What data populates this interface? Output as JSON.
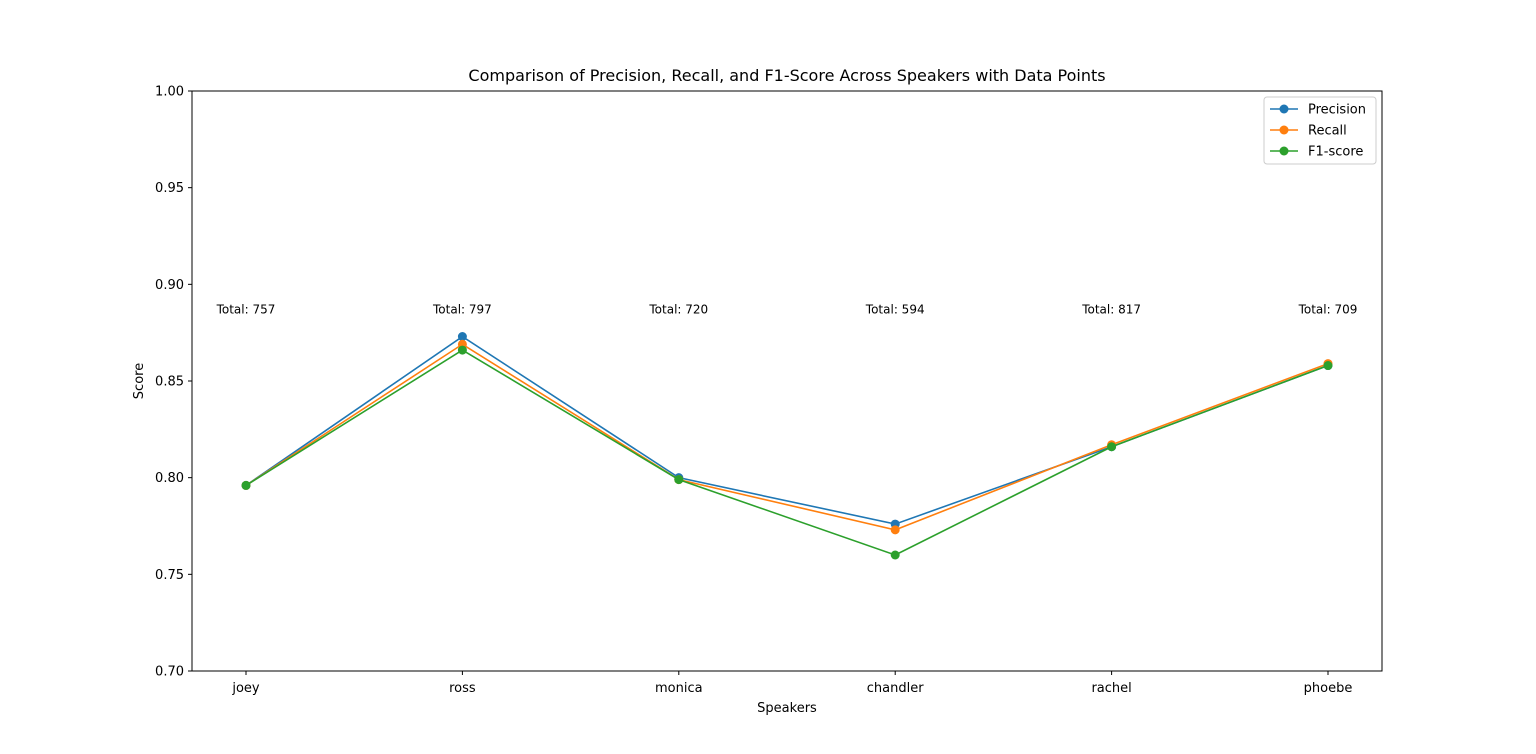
{
  "chart_data": {
    "type": "line",
    "title": "Comparison of Precision, Recall, and F1-Score Across Speakers with Data Points",
    "xlabel": "Speakers",
    "ylabel": "Score",
    "categories": [
      "joey",
      "ross",
      "monica",
      "chandler",
      "rachel",
      "phoebe"
    ],
    "ylim": [
      0.7,
      1.0
    ],
    "yticks": [
      "0.70",
      "0.75",
      "0.80",
      "0.85",
      "0.90",
      "0.95",
      "1.00"
    ],
    "series": [
      {
        "name": "Precision",
        "color": "#1f77b4",
        "values": [
          0.796,
          0.873,
          0.8,
          0.776,
          0.816,
          0.858
        ]
      },
      {
        "name": "Recall",
        "color": "#ff7f0e",
        "values": [
          0.796,
          0.869,
          0.799,
          0.773,
          0.817,
          0.859
        ]
      },
      {
        "name": "F1-score",
        "color": "#2ca02c",
        "values": [
          0.796,
          0.866,
          0.799,
          0.76,
          0.816,
          0.858
        ]
      }
    ],
    "annotations": {
      "y": 0.887,
      "labels": [
        "Total: 757",
        "Total: 797",
        "Total: 720",
        "Total: 594",
        "Total: 817",
        "Total: 709"
      ]
    },
    "grid": false,
    "legend": "top-right"
  }
}
